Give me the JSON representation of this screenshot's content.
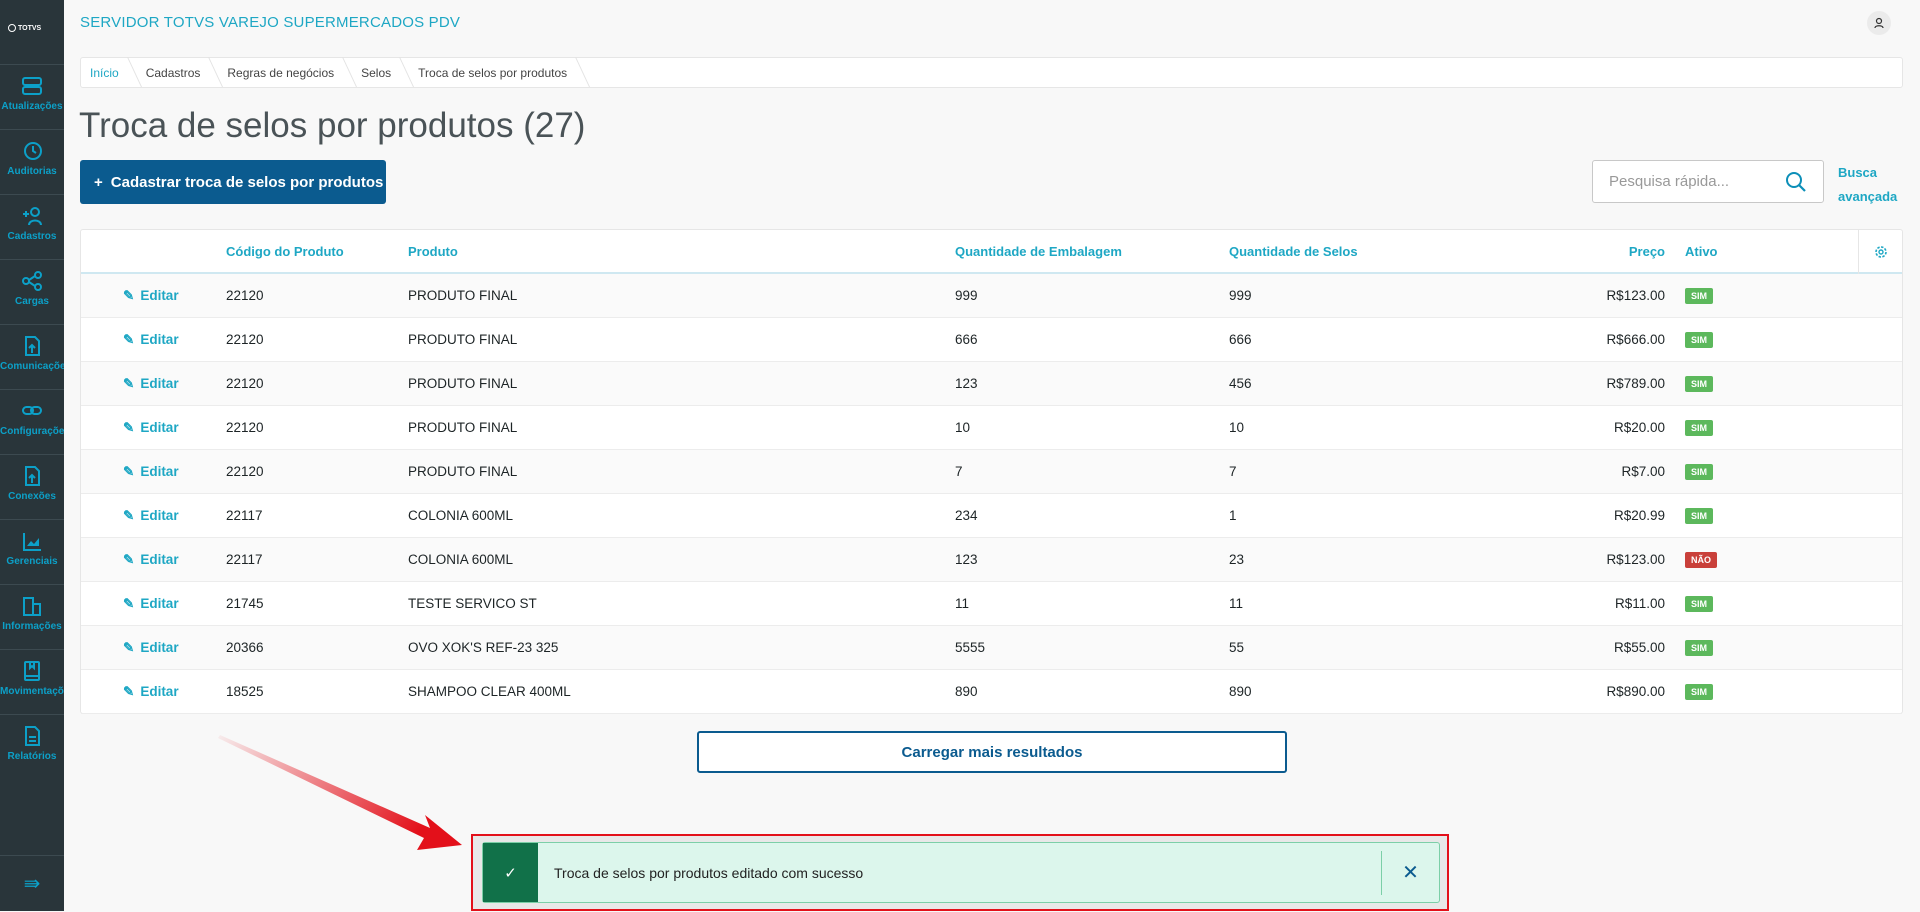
{
  "app": {
    "title": "SERVIDOR TOTVS VAREJO SUPERMERCADOS PDV",
    "logo": "TOTVS varejo"
  },
  "sidebar": {
    "items": [
      {
        "label": "Atualizações",
        "icon": "server-icon"
      },
      {
        "label": "Auditorias",
        "icon": "history-icon"
      },
      {
        "label": "Cadastros",
        "icon": "add-user-icon"
      },
      {
        "label": "Cargas",
        "icon": "share-icon"
      },
      {
        "label": "Comunicações",
        "icon": "upload-file-icon"
      },
      {
        "label": "Configurações",
        "icon": "link-icon"
      },
      {
        "label": "Conexões",
        "icon": "upload-file-icon"
      },
      {
        "label": "Gerenciais",
        "icon": "chart-icon"
      },
      {
        "label": "Informações",
        "icon": "building-icon"
      },
      {
        "label": "Movimentações",
        "icon": "book-icon"
      },
      {
        "label": "Relatórios",
        "icon": "document-icon"
      }
    ]
  },
  "breadcrumb": [
    "Início",
    "Cadastros",
    "Regras de negócios",
    "Selos",
    "Troca de selos por produtos"
  ],
  "page": {
    "title": "Troca de selos por produtos (27)",
    "add_button": "Cadastrar troca de selos por produtos",
    "search_placeholder": "Pesquisa rápida...",
    "advanced_search": [
      "Busca",
      "avançada"
    ],
    "load_more": "Carregar mais resultados"
  },
  "table": {
    "edit_label": "Editar",
    "columns": [
      "Código do Produto",
      "Produto",
      "Quantidade de Embalagem",
      "Quantidade de Selos",
      "Preço",
      "Ativo"
    ],
    "rows": [
      [
        "22120",
        "PRODUTO FINAL",
        "999",
        "999",
        "R$123.00",
        "SIM"
      ],
      [
        "22120",
        "PRODUTO FINAL",
        "666",
        "666",
        "R$666.00",
        "SIM"
      ],
      [
        "22120",
        "PRODUTO FINAL",
        "123",
        "456",
        "R$789.00",
        "SIM"
      ],
      [
        "22120",
        "PRODUTO FINAL",
        "10",
        "10",
        "R$20.00",
        "SIM"
      ],
      [
        "22120",
        "PRODUTO FINAL",
        "7",
        "7",
        "R$7.00",
        "SIM"
      ],
      [
        "22117",
        "COLONIA 600ML",
        "234",
        "1",
        "R$20.99",
        "SIM"
      ],
      [
        "22117",
        "COLONIA 600ML",
        "123",
        "23",
        "R$123.00",
        "NÃO"
      ],
      [
        "21745",
        "TESTE SERVICO ST",
        "11",
        "11",
        "R$11.00",
        "SIM"
      ],
      [
        "20366",
        "OVO XOK'S REF-23 325",
        "5555",
        "55",
        "R$55.00",
        "SIM"
      ],
      [
        "18525",
        "SHAMPOO CLEAR 400ML",
        "890",
        "890",
        "R$890.00",
        "SIM"
      ]
    ]
  },
  "toast": {
    "message": "Troca de selos por produtos editado com sucesso",
    "type": "success"
  },
  "colors": {
    "accent": "#1ea7c4",
    "primary": "#0b5b8f",
    "sidebar": "#29353a",
    "badge_yes": "#5cb85c",
    "badge_no": "#c9403a",
    "toast_bg": "#dcf6ec",
    "toast_icon_bg": "#117149",
    "highlight": "#e3101a"
  }
}
